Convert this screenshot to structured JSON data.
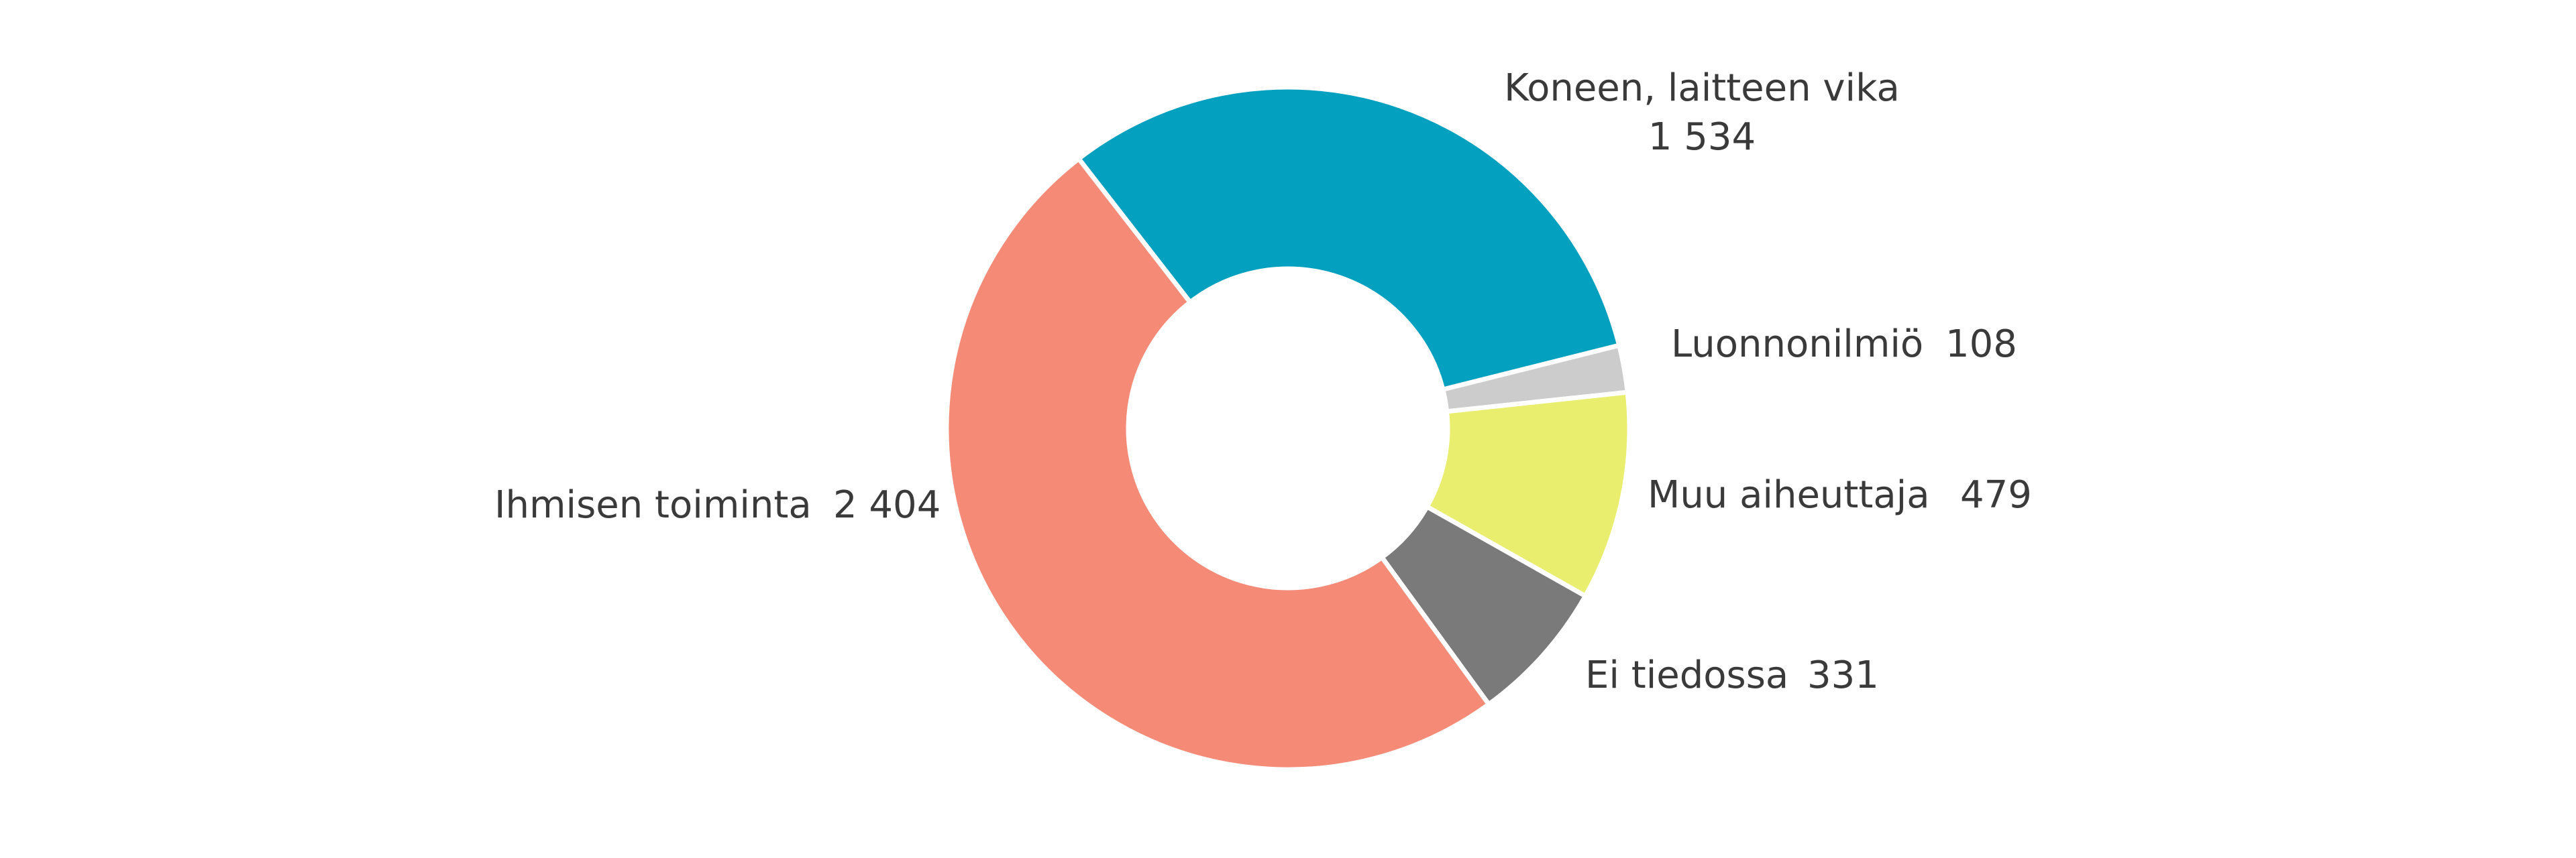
{
  "chart_data": {
    "type": "donut",
    "categories": [
      "Koneen, laitteen vika",
      "Luonnonilmiö",
      "Muu aiheuttaja",
      "Ei tiedossa",
      "Ihmisen toiminta"
    ],
    "values": [
      1534,
      108,
      479,
      331,
      2404
    ],
    "value_labels": [
      "1 534",
      "108",
      "479",
      "331",
      "2 404"
    ],
    "colors": [
      "#03a0c0",
      "#cccccc",
      "#eaee6f",
      "#7a7a7a",
      "#f58a76"
    ]
  }
}
